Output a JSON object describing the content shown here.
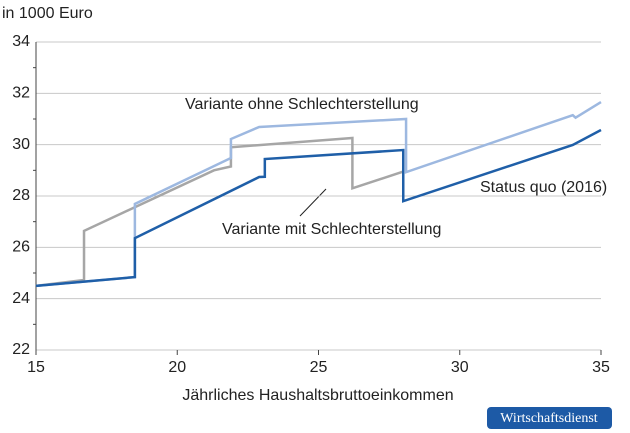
{
  "chart_data": {
    "type": "line",
    "y_label": "in 1000 Euro",
    "x_label": "Jährliches Haushaltsbruttoeinkommen",
    "source": "Wirtschaftsdienst",
    "xlim": [
      15,
      35
    ],
    "xticks": [
      15,
      20,
      25,
      30,
      35
    ],
    "ylim": [
      22,
      34
    ],
    "yticks": [
      22,
      24,
      26,
      28,
      30,
      32,
      34
    ],
    "grid": true,
    "series": [
      {
        "name": "Variante mit Schlechterstellung",
        "color": "#a6a6a6",
        "x": [
          15,
          16.7,
          16.7,
          21.3,
          21.9,
          21.9,
          26.2,
          26.2,
          28
        ],
        "values": [
          24.5,
          24.73,
          26.64,
          29.0,
          29.15,
          29.9,
          30.26,
          28.3,
          28.95
        ]
      },
      {
        "name": "Variante ohne Schlechterstellung",
        "color": "#9db8e0",
        "x": [
          15,
          18.5,
          18.5,
          21.9,
          21.9,
          22.9,
          28.1,
          28.1,
          34,
          34.1,
          35
        ],
        "values": [
          24.5,
          24.84,
          27.69,
          29.48,
          30.22,
          30.69,
          31.0,
          28.93,
          31.15,
          31.05,
          31.66
        ]
      },
      {
        "name": "Status quo (2016)",
        "color": "#1f5fa8",
        "x": [
          15,
          18.5,
          18.5,
          22.9,
          23.1,
          23.1,
          28,
          28,
          34,
          35
        ],
        "values": [
          24.5,
          24.84,
          26.36,
          28.74,
          28.75,
          29.44,
          29.79,
          27.8,
          29.99,
          30.57
        ]
      }
    ]
  }
}
